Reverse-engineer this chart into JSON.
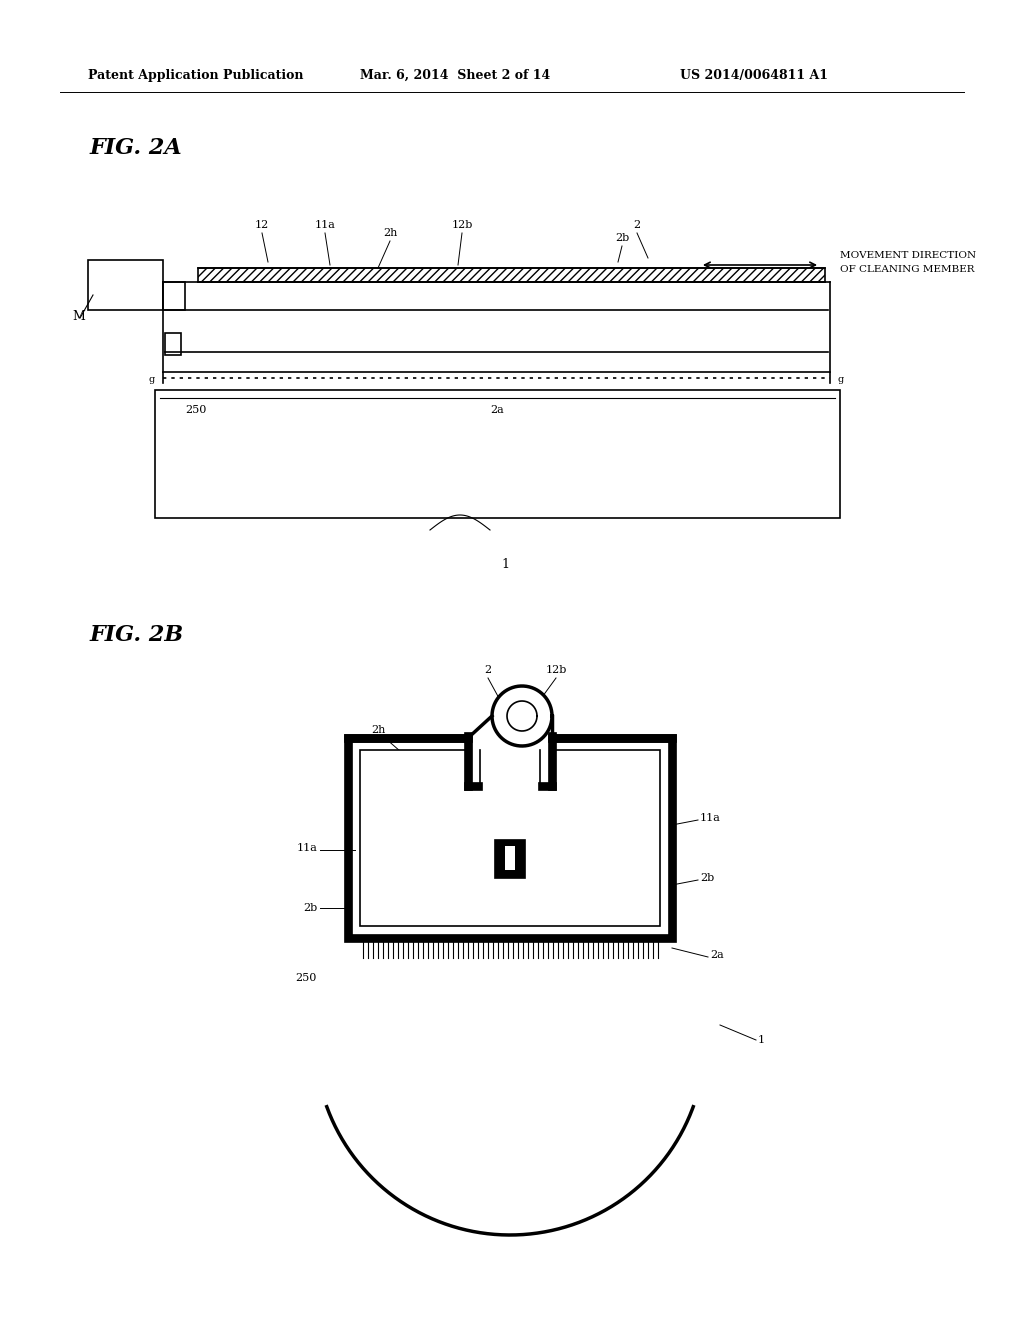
{
  "bg_color": "#ffffff",
  "header_left": "Patent Application Publication",
  "header_mid": "Mar. 6, 2014  Sheet 2 of 14",
  "header_right": "US 2014/0064811 A1",
  "fig2a_label": "FIG. 2A",
  "fig2b_label": "FIG. 2B"
}
